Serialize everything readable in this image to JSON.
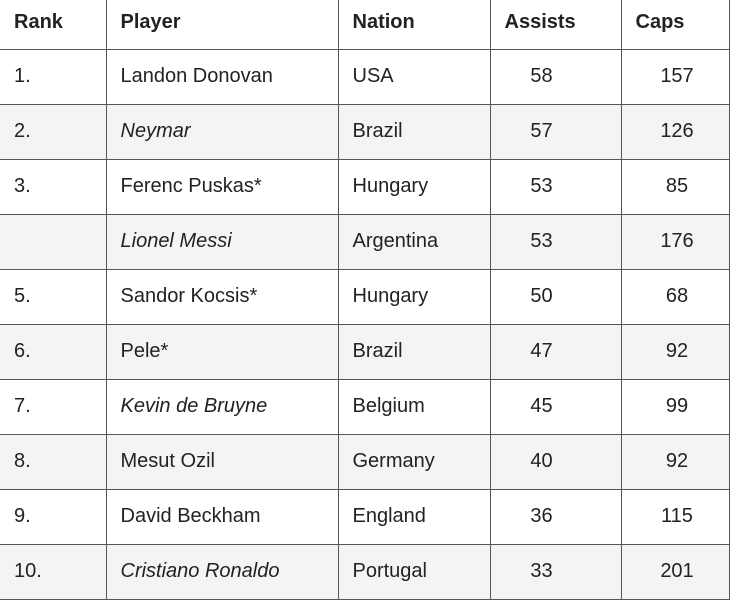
{
  "table": {
    "headers": {
      "rank": "Rank",
      "player": "Player",
      "nation": "Nation",
      "assists": "Assists",
      "caps": "Caps"
    },
    "rows": [
      {
        "rank": "1.",
        "player": "Landon Donovan",
        "italic": false,
        "nation": "USA",
        "assists": "58",
        "caps": "157"
      },
      {
        "rank": "2.",
        "player": "Neymar",
        "italic": true,
        "nation": "Brazil",
        "assists": "57",
        "caps": "126"
      },
      {
        "rank": "3.",
        "player": "Ferenc Puskas*",
        "italic": false,
        "nation": "Hungary",
        "assists": "53",
        "caps": "85"
      },
      {
        "rank": "",
        "player": "Lionel Messi",
        "italic": true,
        "nation": "Argentina",
        "assists": "53",
        "caps": "176"
      },
      {
        "rank": "5.",
        "player": "Sandor Kocsis*",
        "italic": false,
        "nation": "Hungary",
        "assists": "50",
        "caps": "68"
      },
      {
        "rank": "6.",
        "player": "Pele*",
        "italic": false,
        "nation": "Brazil",
        "assists": "47",
        "caps": "92"
      },
      {
        "rank": "7.",
        "player": "Kevin de Bruyne",
        "italic": true,
        "nation": "Belgium",
        "assists": "45",
        "caps": "99"
      },
      {
        "rank": "8.",
        "player": "Mesut Ozil",
        "italic": false,
        "nation": "Germany",
        "assists": "40",
        "caps": "92"
      },
      {
        "rank": "9.",
        "player": "David Beckham",
        "italic": false,
        "nation": "England",
        "assists": "36",
        "caps": "115"
      },
      {
        "rank": "10.",
        "player": "Cristiano Ronaldo",
        "italic": true,
        "nation": "Portugal",
        "assists": "33",
        "caps": "201"
      }
    ]
  }
}
